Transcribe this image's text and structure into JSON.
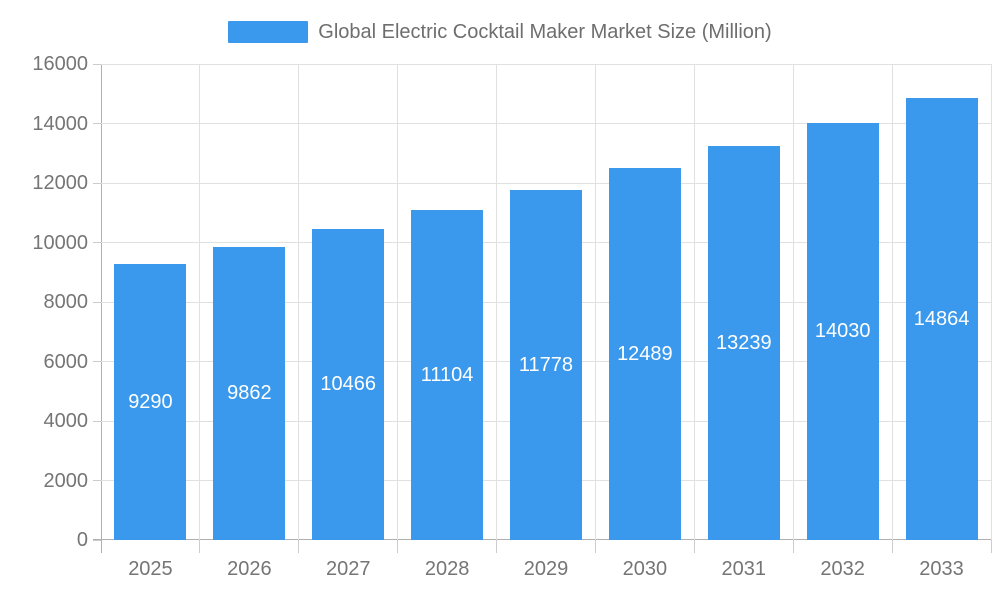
{
  "page": {
    "background": "#FFFFFF"
  },
  "legend": {
    "label": "Global Electric Cocktail Maker Market Size (Million)"
  },
  "chart_data": {
    "type": "bar",
    "title": "Global Electric Cocktail Maker Market Size (Million)",
    "legend": [
      "Global Electric Cocktail Maker Market Size (Million)"
    ],
    "legend_position": "top-center",
    "categories": [
      "2025",
      "2026",
      "2027",
      "2028",
      "2029",
      "2030",
      "2031",
      "2032",
      "2033"
    ],
    "series": [
      {
        "name": "Global Electric Cocktail Maker Market Size (Million)",
        "values": [
          9290,
          9862,
          10466,
          11104,
          11778,
          12489,
          13239,
          14030,
          14864
        ]
      }
    ],
    "values": [
      9290,
      9862,
      10466,
      11104,
      11778,
      12489,
      13239,
      14030,
      14864
    ],
    "value_labels": [
      "9290",
      "9862",
      "10466",
      "11104",
      "11778",
      "12489",
      "13239",
      "14030",
      "14864"
    ],
    "value_label_position": "inside-center",
    "xlabel": "",
    "ylabel": "",
    "ylim": [
      0,
      16000
    ],
    "ytick_step": 2000,
    "yticks": [
      0,
      2000,
      4000,
      6000,
      8000,
      10000,
      12000,
      14000,
      16000
    ],
    "grid": true,
    "colors": {
      "bar": "#3A99EC",
      "grid": "#E0E0E0",
      "axis": "#B0B0B0",
      "tick": "#CCCCCC",
      "axis_text": "#757575",
      "legend_text": "#6E6E6E",
      "value_text": "#FFFFFF",
      "background": "#FFFFFF"
    }
  }
}
